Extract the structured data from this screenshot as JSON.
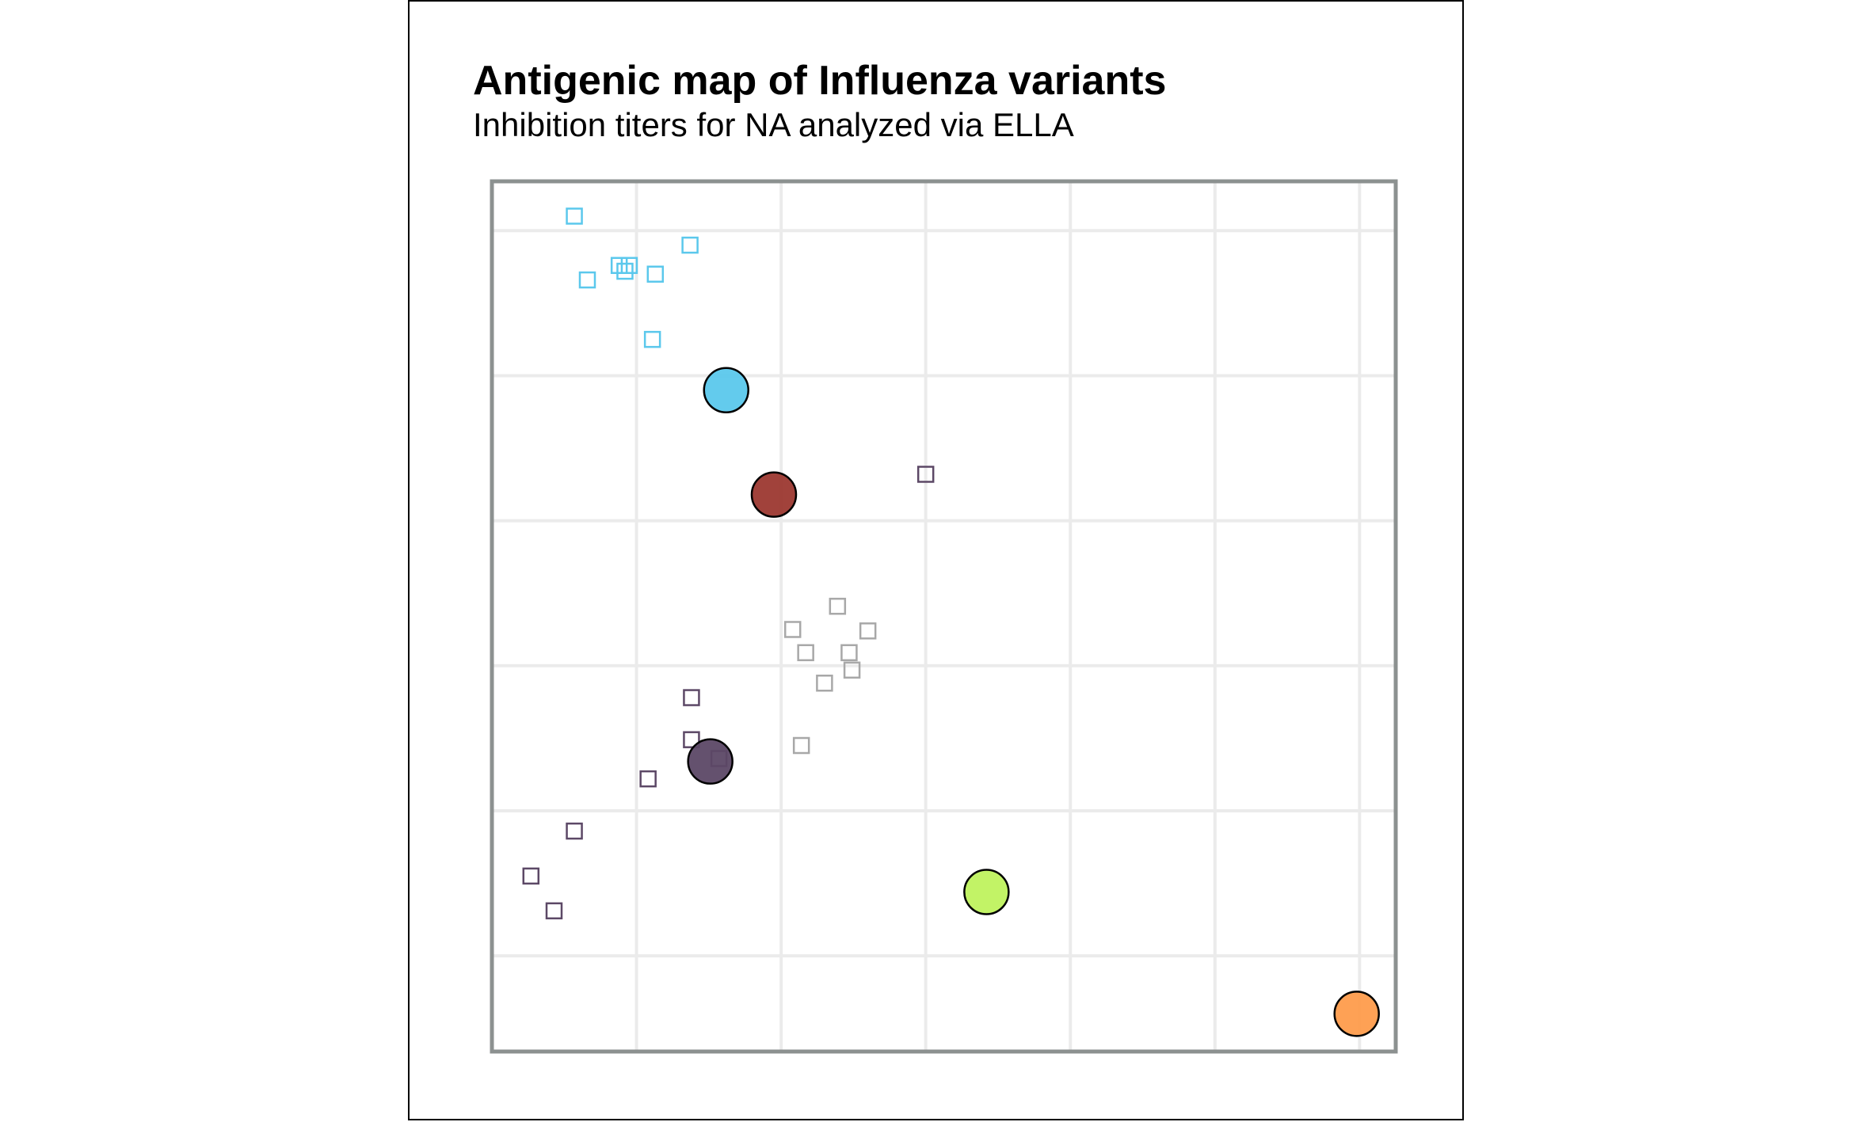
{
  "chart_data": {
    "type": "scatter",
    "title": "Antigenic map of Influenza variants",
    "subtitle": "Inhibition titers for NA analyzed via ELLA",
    "xlabel": "",
    "ylabel": "",
    "xlim": [
      0,
      6.25
    ],
    "ylim": [
      0,
      6.0
    ],
    "grid": true,
    "x_gridlines": [
      1,
      2,
      3,
      4,
      5,
      6
    ],
    "y_gridlines": [
      0.66,
      1.66,
      2.66,
      3.66,
      4.66,
      5.66
    ],
    "tick_labels": "none",
    "series": [
      {
        "marker": "circle",
        "color_role": "antigen",
        "points": [
          {
            "x": 1.62,
            "y": 4.56,
            "color": "#5bc8ec"
          },
          {
            "x": 1.95,
            "y": 3.84,
            "color": "#9c3830"
          },
          {
            "x": 1.51,
            "y": 2.0,
            "color": "#5c4866"
          },
          {
            "x": 3.42,
            "y": 1.1,
            "color": "#bff25e"
          },
          {
            "x": 5.98,
            "y": 0.26,
            "color": "#fe9c4c"
          }
        ]
      },
      {
        "marker": "square",
        "color_role": "sera",
        "points": [
          {
            "x": 0.57,
            "y": 5.76,
            "color": "#5bc8ec"
          },
          {
            "x": 1.37,
            "y": 5.56,
            "color": "#5bc8ec"
          },
          {
            "x": 0.88,
            "y": 5.42,
            "color": "#5bc8ec"
          },
          {
            "x": 0.95,
            "y": 5.42,
            "color": "#5bc8ec"
          },
          {
            "x": 0.92,
            "y": 5.38,
            "color": "#5bc8ec"
          },
          {
            "x": 1.13,
            "y": 5.36,
            "color": "#5bc8ec"
          },
          {
            "x": 0.66,
            "y": 5.32,
            "color": "#5bc8ec"
          },
          {
            "x": 1.11,
            "y": 4.91,
            "color": "#5bc8ec"
          },
          {
            "x": 3.0,
            "y": 3.98,
            "color": "#5c4866"
          },
          {
            "x": 1.38,
            "y": 2.44,
            "color": "#5c4866"
          },
          {
            "x": 1.38,
            "y": 2.15,
            "color": "#5c4866"
          },
          {
            "x": 1.57,
            "y": 2.02,
            "color": "#5c4866"
          },
          {
            "x": 1.08,
            "y": 1.88,
            "color": "#5c4866"
          },
          {
            "x": 0.57,
            "y": 1.52,
            "color": "#5c4866"
          },
          {
            "x": 0.27,
            "y": 1.21,
            "color": "#5c4866"
          },
          {
            "x": 0.43,
            "y": 0.97,
            "color": "#5c4866"
          },
          {
            "x": 2.39,
            "y": 3.07,
            "color": "#a8a8a8"
          },
          {
            "x": 2.08,
            "y": 2.91,
            "color": "#a8a8a8"
          },
          {
            "x": 2.6,
            "y": 2.9,
            "color": "#a8a8a8"
          },
          {
            "x": 2.17,
            "y": 2.75,
            "color": "#a8a8a8"
          },
          {
            "x": 2.47,
            "y": 2.75,
            "color": "#a8a8a8"
          },
          {
            "x": 2.49,
            "y": 2.63,
            "color": "#a8a8a8"
          },
          {
            "x": 2.3,
            "y": 2.54,
            "color": "#a8a8a8"
          },
          {
            "x": 2.14,
            "y": 2.11,
            "color": "#a8a8a8"
          }
        ]
      }
    ]
  }
}
